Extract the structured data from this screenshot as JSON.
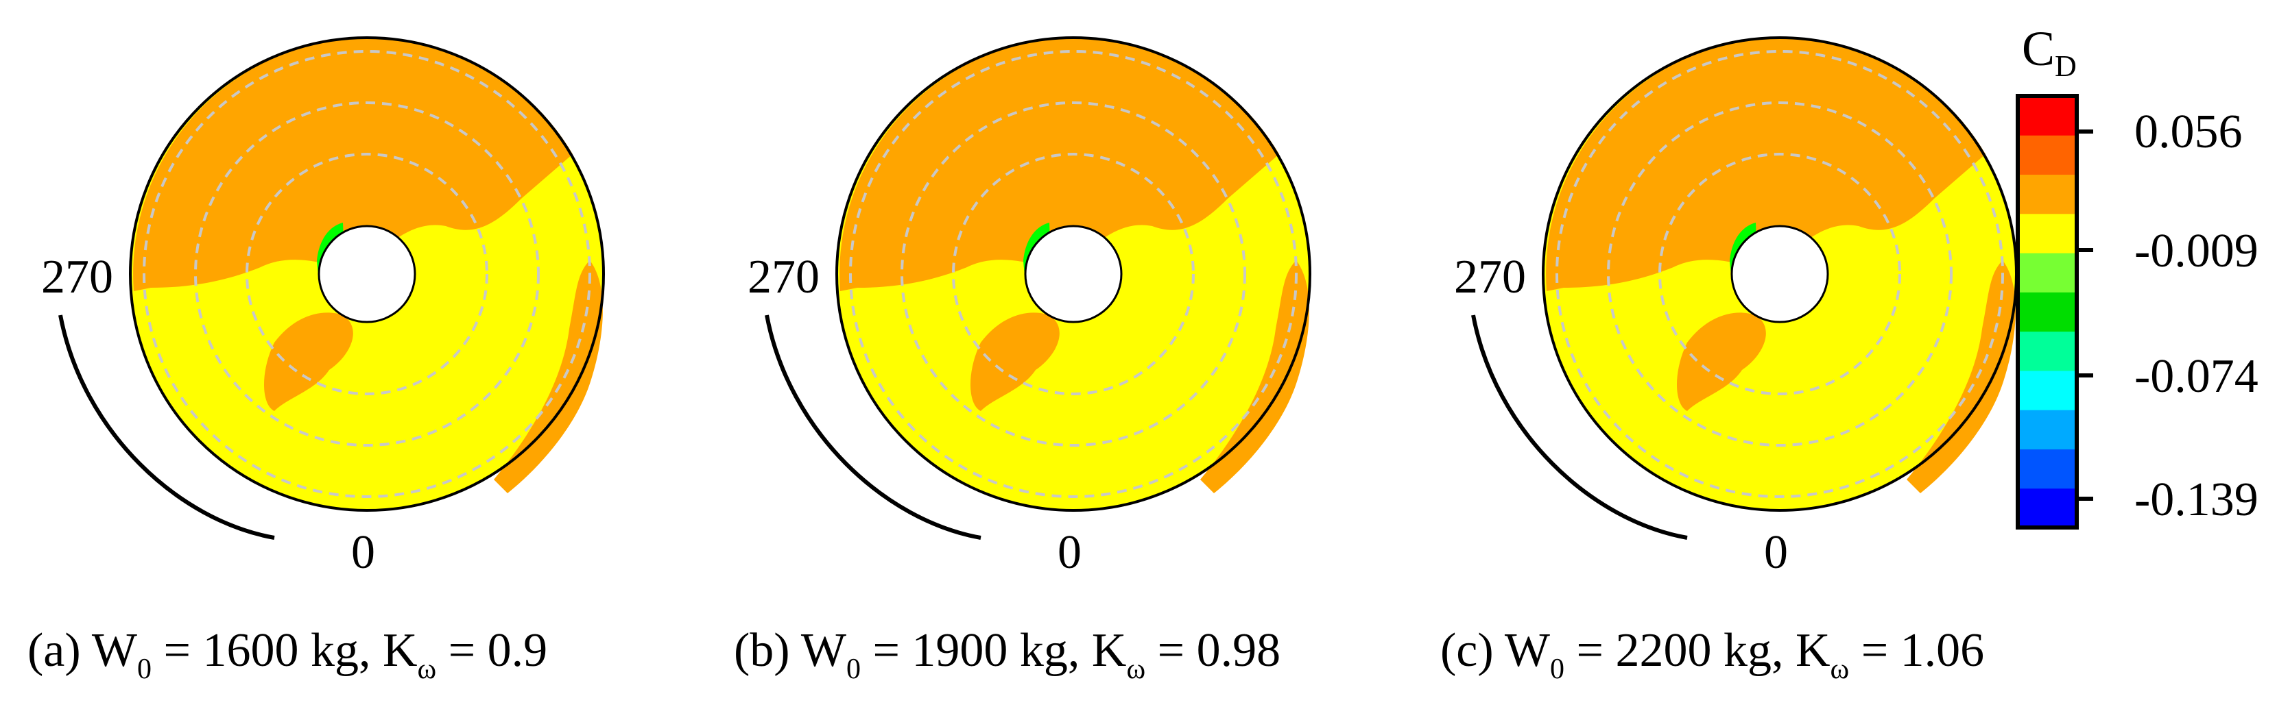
{
  "colors": {
    "orange": "#FFA500",
    "yellow": "#FFFF00",
    "ring": "#C8C8C8",
    "colormap": [
      "#0000FF",
      "#0055FF",
      "#00AAFF",
      "#00FFFF",
      "#00FF99",
      "#00DD00",
      "#77FF33",
      "#FFFF00",
      "#FFA500",
      "#FF6400",
      "#FF0000"
    ]
  },
  "angle_labels": {
    "left": "270",
    "bottom": "0"
  },
  "panels": [
    {
      "id": "a",
      "caption": {
        "prefix": "(a) W",
        "w_sub": "0",
        "mid": " = 1600 kg, K",
        "k_sub": "ω",
        "suffix": " = 0.9"
      }
    },
    {
      "id": "b",
      "caption": {
        "prefix": "(b) W",
        "w_sub": "0",
        "mid": " = 1900 kg, K",
        "k_sub": "ω",
        "suffix": " = 0.98"
      }
    },
    {
      "id": "c",
      "caption": {
        "prefix": "(c) W",
        "w_sub": "0",
        "mid": " = 2200 kg, K",
        "k_sub": "ω",
        "suffix": " = 1.06"
      }
    }
  ],
  "colorbar": {
    "title_main": "C",
    "title_sub": "D",
    "ticks": [
      "0.056",
      "-0.009",
      "-0.074",
      "-0.139"
    ]
  }
}
